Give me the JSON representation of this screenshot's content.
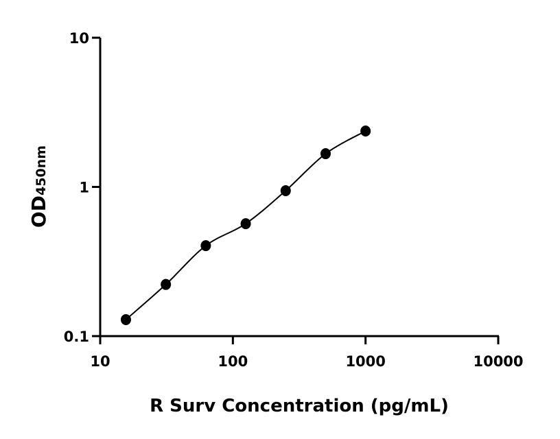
{
  "chart_data": {
    "type": "scatter",
    "title": "",
    "xlabel": "R Surv Concentration (pg/mL)",
    "ylabel": "OD",
    "ylabel_subscript": "450nm",
    "x_scale": "log",
    "y_scale": "log",
    "xlim": [
      10,
      10000
    ],
    "ylim": [
      0.1,
      10
    ],
    "x_ticks": [
      "10",
      "100",
      "1000",
      "10000"
    ],
    "y_ticks": [
      "0.1",
      "1",
      "10"
    ],
    "grid": false,
    "legend": "none",
    "fit_curve": true,
    "marker_color": "#000000",
    "series": [
      {
        "x": [
          15.625,
          31.25,
          62.5,
          125,
          250,
          500,
          1000
        ],
        "y": [
          0.129,
          0.222,
          0.404,
          0.567,
          0.944,
          1.67,
          2.37
        ]
      }
    ]
  }
}
